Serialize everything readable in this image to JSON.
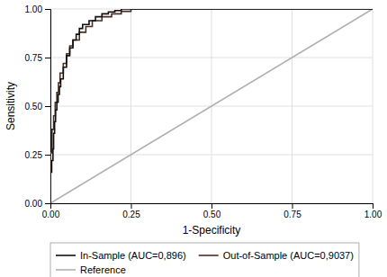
{
  "chart_data": {
    "type": "line",
    "xlabel": "1-Specificity",
    "ylabel": "Sensitivity",
    "xlim": [
      0.0,
      1.0
    ],
    "ylim": [
      0.0,
      1.0
    ],
    "xticks": [
      {
        "value": 0.0,
        "label": "0.00"
      },
      {
        "value": 0.25,
        "label": "0.25"
      },
      {
        "value": 0.5,
        "label": "0.50"
      },
      {
        "value": 0.75,
        "label": "0.75"
      },
      {
        "value": 1.0,
        "label": "1.00"
      }
    ],
    "yticks": [
      {
        "value": 0.0,
        "label": "0.00"
      },
      {
        "value": 0.25,
        "label": "0.25"
      },
      {
        "value": 0.5,
        "label": "0.50"
      },
      {
        "value": 0.75,
        "label": "0.75"
      },
      {
        "value": 1.0,
        "label": "1.00"
      }
    ],
    "grid": true,
    "legend": "bottom",
    "series": [
      {
        "name": "In-Sample (AUC=0,896)",
        "color": "#111111",
        "line_style": "step",
        "x": [
          0.0,
          0.0,
          0.004,
          0.004,
          0.008,
          0.008,
          0.01,
          0.01,
          0.013,
          0.013,
          0.016,
          0.016,
          0.02,
          0.02,
          0.024,
          0.024,
          0.028,
          0.028,
          0.032,
          0.032,
          0.04,
          0.04,
          0.05,
          0.05,
          0.06,
          0.06,
          0.07,
          0.07,
          0.08,
          0.08,
          0.09,
          0.09,
          0.1,
          0.1,
          0.12,
          0.12,
          0.14,
          0.14,
          0.16,
          0.16,
          0.18,
          0.18,
          0.2,
          0.2,
          0.22,
          0.22,
          0.25,
          0.25,
          0.28,
          0.28,
          0.3,
          0.3,
          1.0
        ],
        "values": [
          0.0,
          0.16,
          0.16,
          0.22,
          0.22,
          0.28,
          0.28,
          0.36,
          0.36,
          0.42,
          0.42,
          0.48,
          0.48,
          0.52,
          0.52,
          0.56,
          0.56,
          0.6,
          0.6,
          0.64,
          0.64,
          0.7,
          0.7,
          0.76,
          0.76,
          0.8,
          0.8,
          0.84,
          0.84,
          0.87,
          0.87,
          0.9,
          0.9,
          0.92,
          0.92,
          0.94,
          0.94,
          0.96,
          0.96,
          0.975,
          0.975,
          0.985,
          0.985,
          0.992,
          0.992,
          1.0,
          1.0,
          1.0,
          1.0,
          1.0,
          1.0,
          1.0,
          1.0
        ]
      },
      {
        "name": "Out-of-Sample (AUC=0,9037)",
        "color": "#4a3022",
        "line_style": "step",
        "x": [
          0.0,
          0.0,
          0.005,
          0.005,
          0.01,
          0.01,
          0.015,
          0.015,
          0.02,
          0.02,
          0.025,
          0.025,
          0.03,
          0.03,
          0.04,
          0.04,
          0.05,
          0.05,
          0.06,
          0.06,
          0.07,
          0.07,
          0.09,
          0.09,
          0.11,
          0.11,
          0.13,
          0.13,
          0.16,
          0.16,
          0.19,
          0.19,
          0.22,
          0.22,
          0.25,
          0.25,
          0.28,
          0.28,
          0.31,
          1.0
        ],
        "values": [
          0.0,
          0.26,
          0.26,
          0.38,
          0.38,
          0.45,
          0.45,
          0.52,
          0.52,
          0.57,
          0.57,
          0.62,
          0.62,
          0.67,
          0.67,
          0.72,
          0.72,
          0.77,
          0.77,
          0.81,
          0.81,
          0.84,
          0.84,
          0.88,
          0.88,
          0.91,
          0.91,
          0.94,
          0.94,
          0.96,
          0.96,
          0.975,
          0.975,
          0.988,
          0.988,
          1.0,
          1.0,
          1.0,
          1.0,
          1.0
        ]
      },
      {
        "name": "Reference",
        "color": "#b0b0b0",
        "line_style": "solid",
        "x": [
          0,
          1
        ],
        "values": [
          0,
          1
        ]
      }
    ]
  }
}
